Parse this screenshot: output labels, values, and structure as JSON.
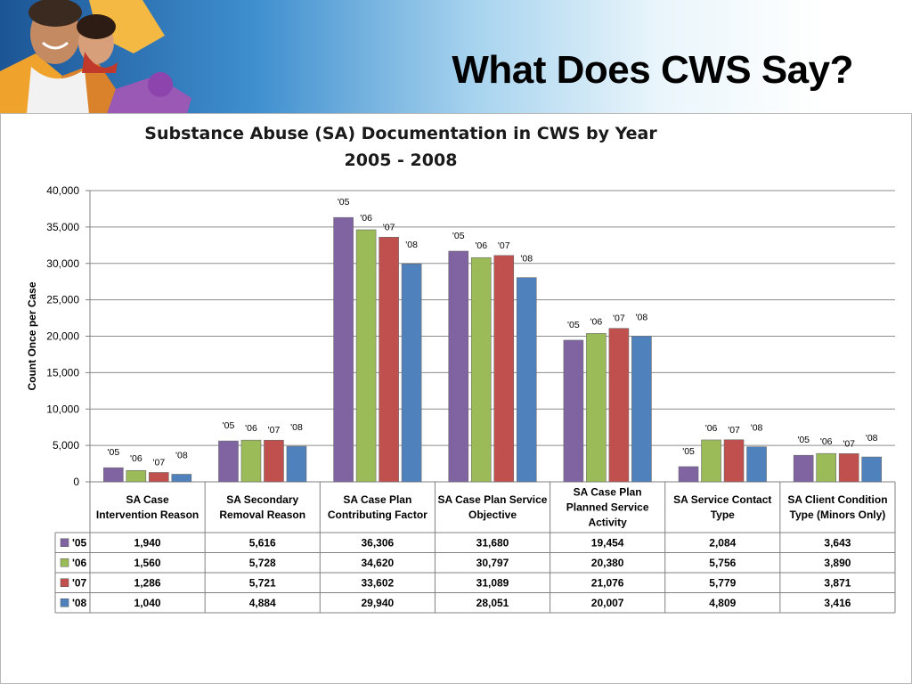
{
  "slide": {
    "title": "What Does CWS Say?"
  },
  "banner": {
    "image": "smiling-family-puzzle-pieces"
  },
  "chart_data": {
    "type": "bar",
    "title": "Substance Abuse (SA) Documentation in CWS by Year",
    "subtitle": "2005 - 2008",
    "xlabel": "",
    "ylabel": "Count Once per Case",
    "ylim": [
      0,
      40000
    ],
    "yticks": [
      "0",
      "5,000",
      "10,000",
      "15,000",
      "20,000",
      "25,000",
      "30,000",
      "35,000",
      "40,000"
    ],
    "grid": true,
    "legend": "data-table",
    "categories": [
      [
        "SA Case",
        "Intervention Reason"
      ],
      [
        "SA Secondary",
        "Removal Reason"
      ],
      [
        "SA Case Plan",
        "Contributing Factor"
      ],
      [
        "SA Case Plan Service",
        "Objective"
      ],
      [
        "SA Case Plan",
        "Planned Service",
        "Activity"
      ],
      [
        "SA Service Contact",
        "Type"
      ],
      [
        "SA Client Condition",
        "Type (Minors Only)"
      ]
    ],
    "series": [
      {
        "name": "'05",
        "color": "#8064a2",
        "values": [
          1940,
          5616,
          36306,
          31680,
          19454,
          2084,
          3643
        ],
        "labels": [
          "1,940",
          "5,616",
          "36,306",
          "31,680",
          "19,454",
          "2,084",
          "3,643"
        ]
      },
      {
        "name": "'06",
        "color": "#9bbb59",
        "values": [
          1560,
          5728,
          34620,
          30797,
          20380,
          5756,
          3890
        ],
        "labels": [
          "1,560",
          "5,728",
          "34,620",
          "30,797",
          "20,380",
          "5,756",
          "3,890"
        ]
      },
      {
        "name": "'07",
        "color": "#c0504d",
        "values": [
          1286,
          5721,
          33602,
          31089,
          21076,
          5779,
          3871
        ],
        "labels": [
          "1,286",
          "5,721",
          "33,602",
          "31,089",
          "21,076",
          "5,779",
          "3,871"
        ]
      },
      {
        "name": "'08",
        "color": "#4f81bd",
        "values": [
          1040,
          4884,
          29940,
          28051,
          20007,
          4809,
          3416
        ],
        "labels": [
          "1,040",
          "4,884",
          "29,940",
          "28,051",
          "20,007",
          "4,809",
          "3,416"
        ]
      }
    ]
  }
}
